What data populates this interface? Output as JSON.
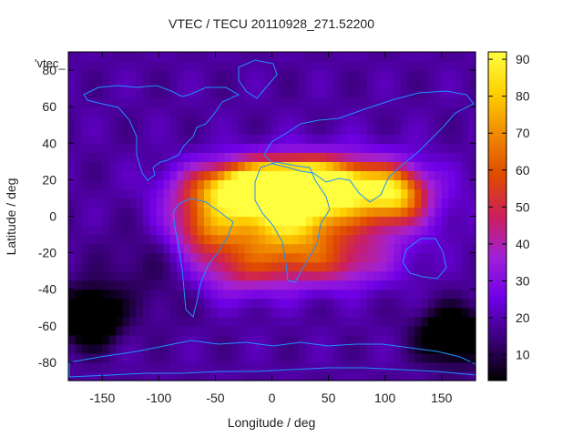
{
  "chart_data": {
    "type": "heatmap",
    "title": "VTEC / TECU 20110928_271.52200",
    "xlabel": "Longitude / deg",
    "ylabel": "Latitude / deg",
    "key_label": "'vtec_",
    "xlim": [
      -180,
      180
    ],
    "ylim": [
      -90,
      90
    ],
    "x_ticks": [
      -150,
      -100,
      -50,
      0,
      50,
      100,
      150
    ],
    "y_ticks": [
      -80,
      -60,
      -40,
      -20,
      0,
      20,
      40,
      60,
      80
    ],
    "colorbar": {
      "range": [
        3,
        92
      ],
      "ticks": [
        10,
        20,
        30,
        40,
        50,
        60,
        70,
        80,
        90
      ],
      "palette": [
        "#000000",
        "#3a0078",
        "#6f00e6",
        "#a020d8",
        "#cc1f5a",
        "#e04a00",
        "#f08a00",
        "#ffd000",
        "#ffff40"
      ]
    },
    "grid": false,
    "features": [
      {
        "lon": 30,
        "lat": 18,
        "value": 88,
        "rlon": 60,
        "rlat": 12
      },
      {
        "lon": -20,
        "lat": 15,
        "value": 78,
        "rlon": 55,
        "rlat": 14
      },
      {
        "lon": 60,
        "lat": 8,
        "value": 62,
        "rlon": 70,
        "rlat": 22
      },
      {
        "lon": -55,
        "lat": -5,
        "value": 60,
        "rlon": 35,
        "rlat": 16
      },
      {
        "lon": 10,
        "lat": -5,
        "value": 60,
        "rlon": 40,
        "rlat": 18
      },
      {
        "lon": 110,
        "lat": 12,
        "value": 55,
        "rlon": 25,
        "rlat": 14
      },
      {
        "lon": 50,
        "lat": -25,
        "value": 46,
        "rlon": 55,
        "rlat": 14
      },
      {
        "lon": -30,
        "lat": -28,
        "value": 44,
        "rlon": 45,
        "rlat": 16
      },
      {
        "lon": -160,
        "lat": -55,
        "value": -18,
        "rlon": 25,
        "rlat": 15
      },
      {
        "lon": 160,
        "lat": -65,
        "value": -14,
        "rlon": 30,
        "rlat": 15
      },
      {
        "lon": -100,
        "lat": -30,
        "value": 10,
        "rlon": 50,
        "rlat": 25
      }
    ],
    "base_value": 18
  }
}
